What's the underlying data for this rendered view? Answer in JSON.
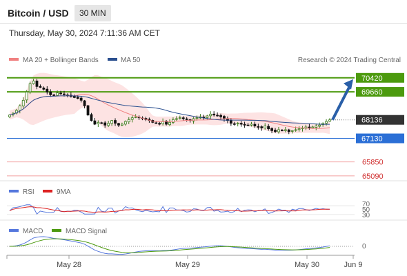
{
  "header": {
    "title": "Bitcoin / USD",
    "timeframe": "30 MIN",
    "datetime": "Thursday, May 30, 2024 7:11:36 AM CET"
  },
  "legend": {
    "ma20": "MA 20 + Bollinger Bands",
    "ma50": "MA 50",
    "credit": "Research © 2024 Trading Central",
    "ma20_color": "#f08080",
    "ma50_color": "#2a4f8f"
  },
  "chart_data": [
    {
      "type": "candlestick",
      "title": "Bitcoin / USD",
      "ylim": [
        64900,
        70900
      ],
      "current_price": 68136,
      "levels": [
        {
          "label": "70420",
          "value": 70420,
          "kind": "resistance",
          "color": "#4c9a0e"
        },
        {
          "label": "69660",
          "value": 69660,
          "kind": "resistance",
          "color": "#4c9a0e"
        },
        {
          "label": "68136",
          "value": 68136,
          "kind": "current",
          "color": "#333333"
        },
        {
          "label": "67130",
          "value": 67130,
          "kind": "support",
          "color": "#2b6fd6"
        },
        {
          "label": "65850",
          "value": 65850,
          "kind": "target",
          "color": "#e05050"
        },
        {
          "label": "65090",
          "value": 65090,
          "kind": "target",
          "color": "#e05050"
        }
      ],
      "x_ticks": [
        "May 28",
        "May 29",
        "May 30",
        "Jun 9"
      ],
      "closes": [
        68400,
        68500,
        68650,
        68900,
        69200,
        69650,
        70100,
        70250,
        69950,
        69900,
        69800,
        69650,
        69500,
        69450,
        69600,
        69550,
        69500,
        69450,
        69400,
        69350,
        69300,
        69200,
        68900,
        68400,
        68100,
        67900,
        68000,
        67950,
        67850,
        67950,
        68100,
        67950,
        67850,
        67900,
        68050,
        68150,
        68250,
        68300,
        68250,
        68200,
        68150,
        68100,
        68000,
        67950,
        67900,
        68050,
        67900,
        68000,
        68150,
        68200,
        68250,
        68200,
        68150,
        68100,
        68200,
        68250,
        68300,
        68250,
        68350,
        68450,
        68400,
        68350,
        68300,
        68200,
        68100,
        67950,
        67900,
        67950,
        67900,
        67850,
        67850,
        67900,
        67800,
        67750,
        67700,
        67800,
        67650,
        67550,
        67500,
        67600,
        67550,
        67600,
        67500,
        67550,
        67600,
        67650,
        67700,
        67750,
        67700,
        67750,
        67800,
        67850,
        67950,
        68050,
        68136
      ]
    },
    {
      "type": "line",
      "title": "RSI",
      "series": [
        {
          "name": "RSI",
          "color": "#5577dd"
        },
        {
          "name": "9MA",
          "color": "#dd2222"
        }
      ],
      "y_ticks": [
        70,
        50,
        30
      ]
    },
    {
      "type": "line",
      "title": "MACD",
      "series": [
        {
          "name": "MACD",
          "color": "#5577dd"
        },
        {
          "name": "MACD Signal",
          "color": "#4c9a0e"
        }
      ],
      "y_ticks": [
        0
      ]
    }
  ],
  "indicators": {
    "rsi": {
      "label": "RSI",
      "ma_label": "9MA",
      "ticks": [
        "70",
        "50",
        "30"
      ]
    },
    "macd": {
      "label": "MACD",
      "signal_label": "MACD Signal",
      "ticks": [
        "0"
      ]
    }
  }
}
